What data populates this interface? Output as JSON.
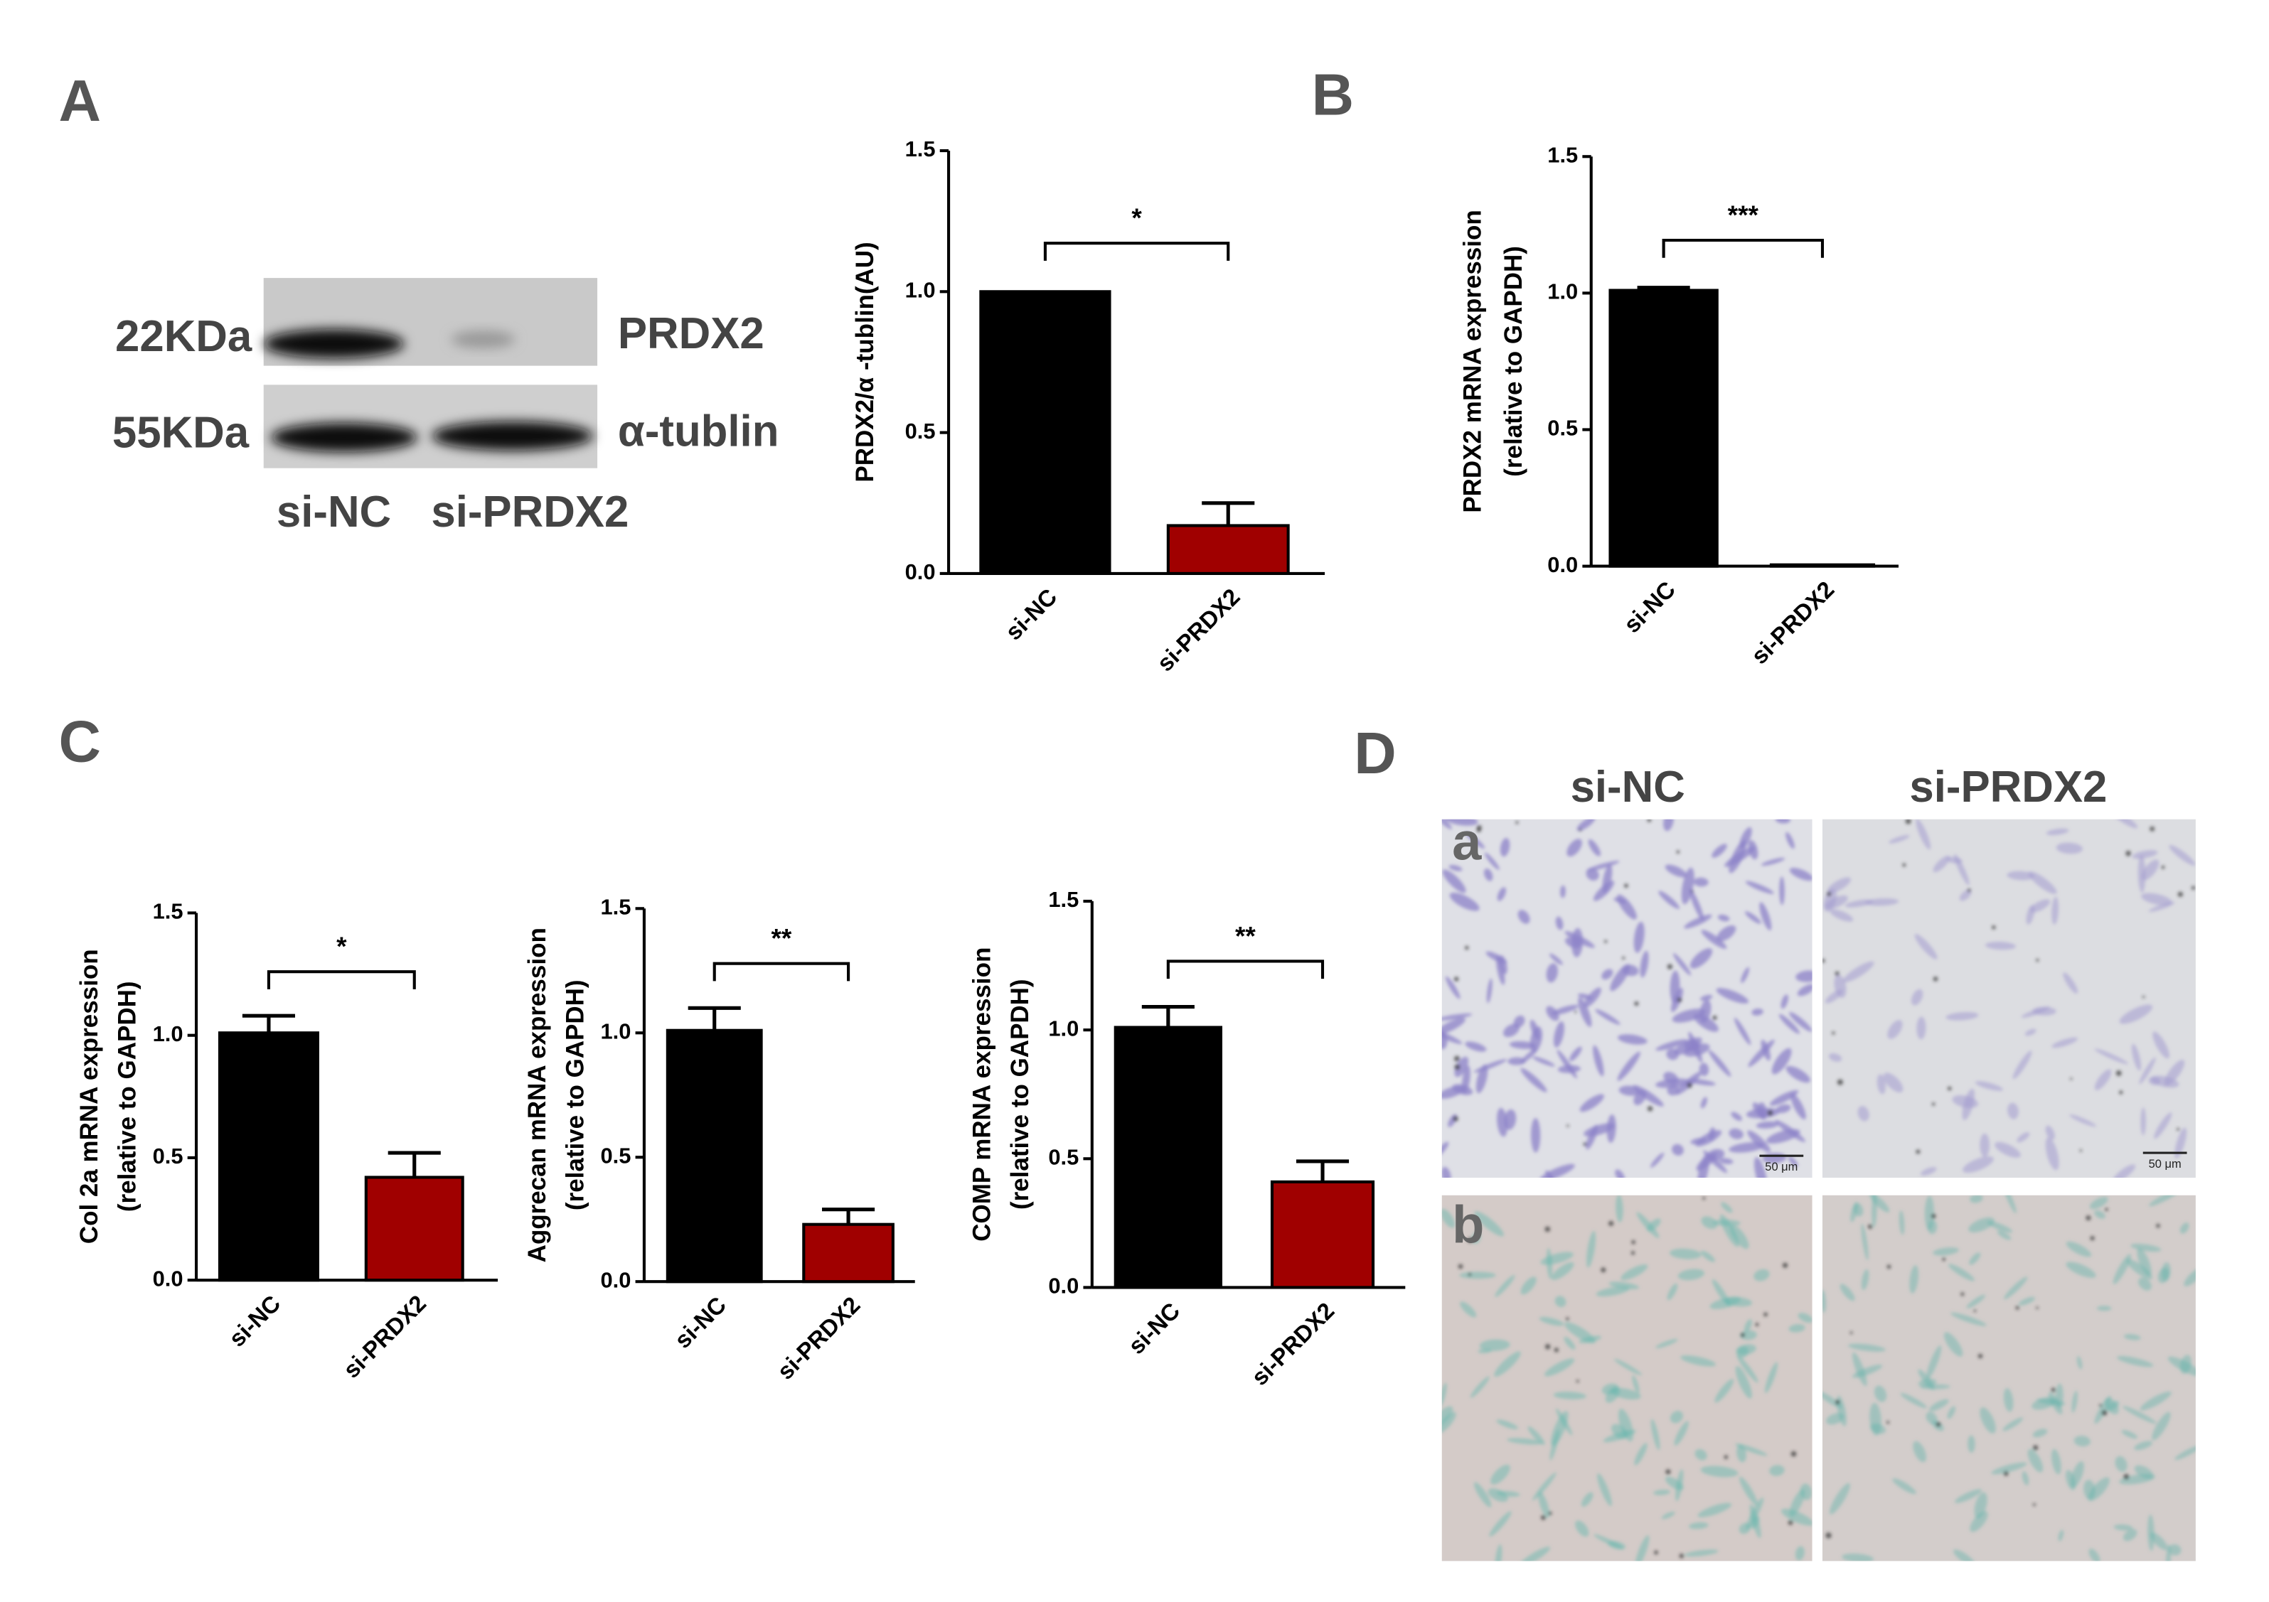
{
  "panel_labels": [
    "A",
    "B",
    "C",
    "D"
  ],
  "western_blot": {
    "bands": [
      {
        "size": "22KDa",
        "protein": "PRDX2"
      },
      {
        "size": "55KDa",
        "protein": "α-tublin"
      }
    ],
    "lanes": [
      "si-NC",
      "si-PRDX2"
    ]
  },
  "chart_data": [
    {
      "type": "bar",
      "ylabel": [
        "PRDX2/α -tublin(AU)"
      ],
      "categories": [
        "si-NC",
        "si-PRDX2"
      ],
      "values": [
        1.0,
        0.17
      ],
      "errors": [
        0,
        0.08
      ],
      "colors": [
        "#000000",
        "#a00000"
      ],
      "annotation": "*",
      "ylim": [
        0,
        1.5
      ],
      "yticks": [
        {
          "value": 0,
          "label": "0.0"
        },
        0.5,
        {
          "value": 1,
          "label": "1.0"
        },
        1.5
      ]
    },
    {
      "type": "bar",
      "ylabel": [
        "PRDX2 mRNA expression",
        "(relative to GAPDH)"
      ],
      "categories": [
        "si-NC",
        "si-PRDX2"
      ],
      "values": [
        1.01,
        0.005
      ],
      "errors": [
        0.01,
        0
      ],
      "colors": [
        "#000000",
        "#a00000"
      ],
      "annotation": "***",
      "ylim": [
        0,
        1.5
      ],
      "yticks": [
        {
          "value": 0,
          "label": "0.0"
        },
        0.5,
        {
          "value": 1,
          "label": "1.0"
        },
        1.5
      ]
    },
    {
      "type": "bar",
      "ylabel": [
        "Col 2a mRNA expression",
        "(relative to GAPDH)"
      ],
      "categories": [
        "si-NC",
        "si-PRDX2"
      ],
      "values": [
        1.01,
        0.42
      ],
      "errors": [
        0.07,
        0.1
      ],
      "colors": [
        "#000000",
        "#a00000"
      ],
      "annotation": "*",
      "ylim": [
        0,
        1.5
      ],
      "yticks": [
        {
          "value": 0,
          "label": "0.0"
        },
        0.5,
        {
          "value": 1,
          "label": "1.0"
        },
        1.5
      ]
    },
    {
      "type": "bar",
      "ylabel": [
        "Aggrecan mRNA expression",
        "(relative to GAPDH)"
      ],
      "categories": [
        "si-NC",
        "si-PRDX2"
      ],
      "values": [
        1.01,
        0.23
      ],
      "errors": [
        0.09,
        0.06
      ],
      "colors": [
        "#000000",
        "#a00000"
      ],
      "annotation": "**",
      "ylim": [
        0,
        1.5
      ],
      "yticks": [
        {
          "value": 0,
          "label": "0.0"
        },
        0.5,
        {
          "value": 1,
          "label": "1.0"
        },
        1.5
      ]
    },
    {
      "type": "bar",
      "ylabel": [
        "COMP mRNA expression",
        "(relative to GAPDH)"
      ],
      "categories": [
        "si-NC",
        "si-PRDX2"
      ],
      "values": [
        1.01,
        0.41
      ],
      "errors": [
        0.08,
        0.08
      ],
      "colors": [
        "#000000",
        "#a00000"
      ],
      "annotation": "**",
      "ylim": [
        0,
        1.5
      ],
      "yticks": [
        {
          "value": 0,
          "label": "0.0"
        },
        0.5,
        {
          "value": 1,
          "label": "1.0"
        },
        1.5
      ]
    }
  ],
  "micrographs": {
    "columns": [
      "si-NC",
      "si-PRDX2"
    ],
    "rows": [
      "a",
      "b"
    ],
    "scale_bar": "50 μm"
  }
}
